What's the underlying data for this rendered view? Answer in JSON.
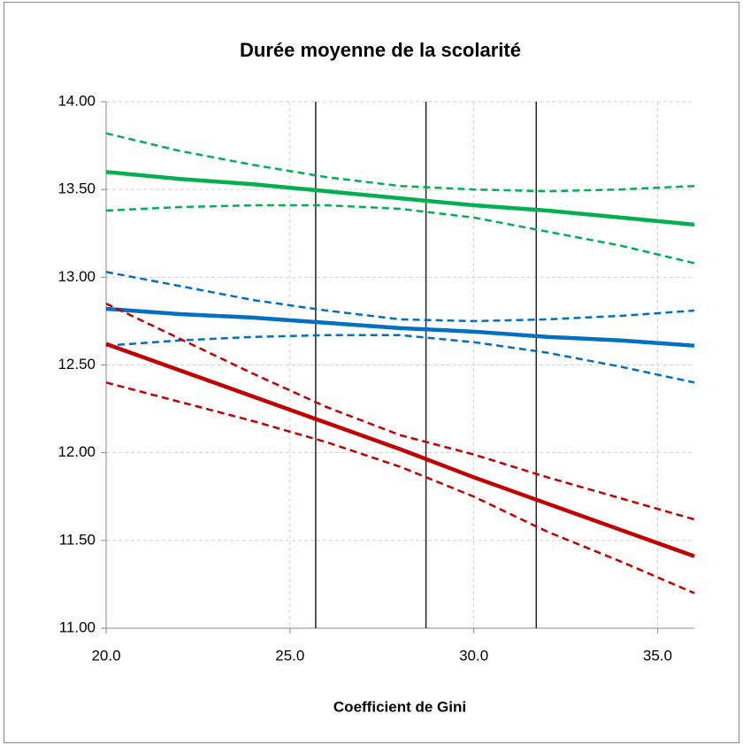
{
  "chart_data": {
    "type": "line",
    "title": "Durée moyenne de la scolarité",
    "x_label": "Coefficient de Gini",
    "x": [
      20,
      22,
      24,
      26,
      28,
      30,
      32,
      34,
      36
    ],
    "series": [
      {
        "color": "#00b050",
        "dashed": false,
        "values": [
          13.6,
          13.56,
          13.53,
          13.49,
          13.45,
          13.41,
          13.38,
          13.34,
          13.3
        ]
      },
      {
        "color": "#00b050",
        "dashed": true,
        "values": [
          13.82,
          13.72,
          13.64,
          13.57,
          13.52,
          13.5,
          13.49,
          13.5,
          13.52
        ]
      },
      {
        "color": "#00b050",
        "dashed": true,
        "values": [
          13.38,
          13.4,
          13.41,
          13.41,
          13.39,
          13.34,
          13.26,
          13.18,
          13.08
        ]
      },
      {
        "color": "#0070c0",
        "dashed": false,
        "values": [
          12.82,
          12.79,
          12.77,
          12.74,
          12.71,
          12.69,
          12.66,
          12.64,
          12.61
        ]
      },
      {
        "color": "#0070c0",
        "dashed": true,
        "values": [
          13.03,
          12.95,
          12.87,
          12.81,
          12.76,
          12.75,
          12.76,
          12.78,
          12.81
        ]
      },
      {
        "color": "#0070c0",
        "dashed": true,
        "values": [
          12.61,
          12.64,
          12.66,
          12.67,
          12.67,
          12.63,
          12.57,
          12.49,
          12.4
        ]
      },
      {
        "color": "#c00000",
        "dashed": false,
        "values": [
          12.62,
          12.47,
          12.32,
          12.17,
          12.02,
          11.86,
          11.71,
          11.56,
          11.41
        ]
      },
      {
        "color": "#c00000",
        "dashed": true,
        "values": [
          12.85,
          12.65,
          12.45,
          12.26,
          12.1,
          11.99,
          11.86,
          11.74,
          11.62
        ]
      },
      {
        "color": "#c00000",
        "dashed": true,
        "values": [
          12.4,
          12.29,
          12.18,
          12.06,
          11.92,
          11.75,
          11.55,
          11.38,
          11.2
        ]
      }
    ],
    "reference_lines": [
      25.7,
      28.7,
      31.7
    ],
    "xlim": [
      20,
      36
    ],
    "xticks": [
      {
        "value": 20,
        "label": "20.0"
      },
      {
        "value": 25,
        "label": "25.0"
      },
      {
        "value": 30,
        "label": "30.0"
      },
      {
        "value": 35,
        "label": "35.0"
      }
    ],
    "ylim": [
      11,
      14
    ],
    "yticks": [
      {
        "value": 11,
        "label": "11.00"
      },
      {
        "value": 11.5,
        "label": "11.50"
      },
      {
        "value": 12,
        "label": "12.00"
      },
      {
        "value": 12.5,
        "label": "12.50"
      },
      {
        "value": 13,
        "label": "13.00"
      },
      {
        "value": 13.5,
        "label": "13.50"
      },
      {
        "value": 14,
        "label": "14.00"
      }
    ],
    "grid": true
  }
}
